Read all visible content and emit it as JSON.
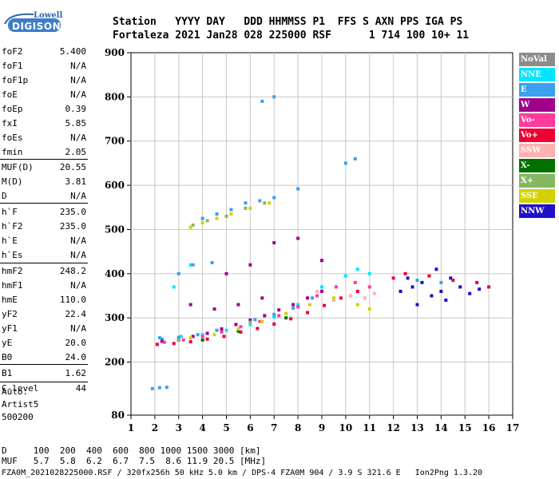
{
  "logo": {
    "line1": "Lowell",
    "line2": "DIGISONDE"
  },
  "header": {
    "line1": "Station   YYYY DAY   DDD HHMMSS P1  FFS S AXN PPS IGA PS",
    "line2": "Fortaleza 2021 Jan28 028 225000 RSF      1 714 100 10+ 11"
  },
  "params": [
    {
      "name": "foF2",
      "value": "5.400"
    },
    {
      "name": "foF1",
      "value": "N/A"
    },
    {
      "name": "foF1p",
      "value": "N/A"
    },
    {
      "name": "foE",
      "value": "N/A"
    },
    {
      "name": "foEp",
      "value": "0.39"
    },
    {
      "name": "fxI",
      "value": "5.85"
    },
    {
      "name": "foEs",
      "value": "N/A"
    },
    {
      "name": "fmin",
      "value": "2.05"
    },
    {
      "name": "MUF(D)",
      "value": "20.55"
    },
    {
      "name": "M(D)",
      "value": "3.81"
    },
    {
      "name": "D",
      "value": "N/A"
    },
    {
      "name": "h`F",
      "value": "235.0"
    },
    {
      "name": "h`F2",
      "value": "235.0"
    },
    {
      "name": "h`E",
      "value": "N/A"
    },
    {
      "name": "h`Es",
      "value": "N/A"
    },
    {
      "name": "hmF2",
      "value": "248.2"
    },
    {
      "name": "hmF1",
      "value": "N/A"
    },
    {
      "name": "hmE",
      "value": "110.0"
    },
    {
      "name": "yF2",
      "value": "22.4"
    },
    {
      "name": "yF1",
      "value": "N/A"
    },
    {
      "name": "yE",
      "value": "20.0"
    },
    {
      "name": "B0",
      "value": "24.0"
    },
    {
      "name": "B1",
      "value": "1.62"
    },
    {
      "name": "C-level",
      "value": "44"
    }
  ],
  "autoscaling": {
    "line1": "Auto:",
    "line2": "Artist5",
    "line3": "500200"
  },
  "legend": [
    {
      "label": "NoVal",
      "color": "#8c8c8c"
    },
    {
      "label": "NNE",
      "color": "#00e5ff"
    },
    {
      "label": "E",
      "color": "#3aa0f0"
    },
    {
      "label": "W",
      "color": "#a0008c"
    },
    {
      "label": "Vo-",
      "color": "#ff3c9c"
    },
    {
      "label": "Vo+",
      "color": "#ee0033"
    },
    {
      "label": "SSW",
      "color": "#ffb0b0"
    },
    {
      "label": "X-",
      "color": "#007000"
    },
    {
      "label": "X+",
      "color": "#84b860"
    },
    {
      "label": "SSE",
      "color": "#d2d200"
    },
    {
      "label": "NNW",
      "color": "#2010c8"
    }
  ],
  "footer": {
    "line1": "D     100  200  400  600  800 1000 1500 3000 [km]",
    "line2": "MUF   5.7  5.8  6.2  6.7  7.5  8.6 11.9 20.5 [MHz]",
    "line3": "FZA0M_2021028225000.RSF / 320fx256h 50 kHz 5.0 km / DPS-4 FZA0M 904 / 3.9 S 321.6 E   Ion2Png 1.3.20"
  },
  "chart_data": {
    "type": "scatter",
    "title": "",
    "xlabel": "",
    "ylabel": "",
    "xlim": [
      1,
      17
    ],
    "ylim": [
      80,
      900
    ],
    "x_ticks": [
      1,
      2,
      3,
      4,
      5,
      6,
      7,
      8,
      9,
      10,
      11,
      12,
      13,
      14,
      15,
      16,
      17
    ],
    "y_ticks": [
      80,
      200,
      300,
      400,
      500,
      600,
      700,
      800,
      900
    ],
    "grid": true,
    "series": [
      {
        "name": "NNE",
        "color": "#00e5ff",
        "points": [
          [
            3.1,
            258
          ],
          [
            4.0,
            262
          ],
          [
            5.0,
            272
          ],
          [
            6.0,
            285
          ],
          [
            7.0,
            302
          ],
          [
            8.0,
            330
          ],
          [
            9.0,
            370
          ],
          [
            10.0,
            395
          ],
          [
            10.5,
            410
          ],
          [
            11.0,
            400
          ],
          [
            2.8,
            370
          ],
          [
            3.5,
            420
          ]
        ]
      },
      {
        "name": "E",
        "color": "#3aa0f0",
        "points": [
          [
            1.9,
            140
          ],
          [
            2.2,
            142
          ],
          [
            2.5,
            143
          ],
          [
            2.3,
            252
          ],
          [
            3.0,
            256
          ],
          [
            3.8,
            262
          ],
          [
            4.6,
            272
          ],
          [
            5.4,
            285
          ],
          [
            6.2,
            296
          ],
          [
            7.0,
            308
          ],
          [
            7.8,
            322
          ],
          [
            8.6,
            345
          ],
          [
            3.0,
            400
          ],
          [
            3.6,
            420
          ],
          [
            4.4,
            425
          ],
          [
            4.0,
            525
          ],
          [
            4.6,
            535
          ],
          [
            5.2,
            545
          ],
          [
            5.8,
            560
          ],
          [
            6.4,
            565
          ],
          [
            7.0,
            572
          ],
          [
            8.0,
            592
          ],
          [
            2.2,
            255
          ],
          [
            10.0,
            650
          ],
          [
            10.4,
            660
          ],
          [
            6.5,
            790
          ],
          [
            7.0,
            800
          ],
          [
            13.0,
            385
          ],
          [
            14.0,
            380
          ]
        ]
      },
      {
        "name": "W",
        "color": "#a0008c",
        "points": [
          [
            2.3,
            247
          ],
          [
            3.0,
            250
          ],
          [
            3.6,
            258
          ],
          [
            4.2,
            265
          ],
          [
            4.8,
            275
          ],
          [
            5.4,
            285
          ],
          [
            6.0,
            295
          ],
          [
            6.6,
            305
          ],
          [
            7.2,
            318
          ],
          [
            7.8,
            330
          ],
          [
            8.4,
            345
          ],
          [
            9.0,
            360
          ],
          [
            5.0,
            400
          ],
          [
            6.0,
            420
          ],
          [
            7.0,
            470
          ],
          [
            8.0,
            480
          ],
          [
            9.0,
            430
          ],
          [
            3.5,
            330
          ],
          [
            4.5,
            320
          ],
          [
            5.5,
            330
          ],
          [
            6.5,
            345
          ]
        ]
      },
      {
        "name": "Vo-",
        "color": "#ff3c9c",
        "points": [
          [
            2.4,
            245
          ],
          [
            3.2,
            250
          ],
          [
            4.0,
            258
          ],
          [
            4.8,
            268
          ],
          [
            5.6,
            280
          ],
          [
            6.4,
            292
          ],
          [
            7.2,
            305
          ],
          [
            8.0,
            325
          ],
          [
            8.8,
            350
          ],
          [
            9.6,
            370
          ],
          [
            10.4,
            380
          ],
          [
            11.0,
            370
          ]
        ]
      },
      {
        "name": "Vo+",
        "color": "#ee0033",
        "points": [
          [
            2.1,
            240
          ],
          [
            2.8,
            242
          ],
          [
            3.5,
            246
          ],
          [
            4.2,
            252
          ],
          [
            4.9,
            258
          ],
          [
            5.6,
            268
          ],
          [
            6.3,
            276
          ],
          [
            7.0,
            286
          ],
          [
            7.7,
            298
          ],
          [
            8.4,
            312
          ],
          [
            9.1,
            328
          ],
          [
            9.8,
            345
          ],
          [
            10.5,
            360
          ],
          [
            12.0,
            390
          ],
          [
            12.5,
            400
          ],
          [
            13.5,
            395
          ],
          [
            14.5,
            385
          ],
          [
            15.5,
            380
          ],
          [
            16.0,
            370
          ]
        ]
      },
      {
        "name": "SSW",
        "color": "#ffb0b0",
        "points": [
          [
            9.5,
            340
          ],
          [
            10.2,
            350
          ],
          [
            10.8,
            345
          ],
          [
            11.2,
            355
          ],
          [
            8.8,
            360
          ]
        ]
      },
      {
        "name": "X-",
        "color": "#007000",
        "points": [
          [
            4.0,
            250
          ],
          [
            5.5,
            270
          ],
          [
            7.5,
            300
          ]
        ]
      },
      {
        "name": "X+",
        "color": "#84b860",
        "points": [
          [
            3.6,
            510
          ],
          [
            4.2,
            520
          ],
          [
            5.0,
            530
          ],
          [
            5.8,
            548
          ],
          [
            6.6,
            560
          ],
          [
            3.0,
            250
          ],
          [
            6.0,
            290
          ]
        ]
      },
      {
        "name": "SSE",
        "color": "#d2d200",
        "points": [
          [
            3.5,
            505
          ],
          [
            4.0,
            515
          ],
          [
            4.6,
            525
          ],
          [
            5.2,
            535
          ],
          [
            6.0,
            548
          ],
          [
            6.8,
            560
          ],
          [
            3.5,
            255
          ],
          [
            4.5,
            262
          ],
          [
            5.5,
            275
          ],
          [
            6.5,
            292
          ],
          [
            7.5,
            310
          ],
          [
            8.5,
            330
          ],
          [
            9.5,
            345
          ],
          [
            10.5,
            330
          ],
          [
            11.0,
            320
          ]
        ]
      },
      {
        "name": "NNW",
        "color": "#2010c8",
        "points": [
          [
            12.3,
            360
          ],
          [
            12.8,
            370
          ],
          [
            13.2,
            380
          ],
          [
            13.6,
            350
          ],
          [
            14.0,
            360
          ],
          [
            14.4,
            390
          ],
          [
            14.8,
            370
          ],
          [
            15.2,
            355
          ],
          [
            15.6,
            365
          ],
          [
            13.0,
            330
          ],
          [
            14.2,
            340
          ],
          [
            12.6,
            390
          ],
          [
            13.8,
            410
          ]
        ]
      }
    ]
  }
}
